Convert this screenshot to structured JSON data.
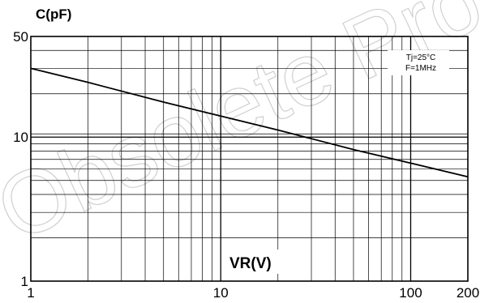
{
  "watermark": "Obsolete Pro",
  "chart_data": {
    "type": "line",
    "title": "",
    "xlabel": "VR(V)",
    "ylabel": "C(pF)",
    "x_scale": "log",
    "y_scale": "log",
    "xlim": [
      1,
      200
    ],
    "ylim": [
      1,
      50
    ],
    "x_ticks": [
      {
        "value": 1,
        "label": "1"
      },
      {
        "value": 10,
        "label": "10"
      },
      {
        "value": 100,
        "label": "100"
      },
      {
        "value": 200,
        "label": "200"
      }
    ],
    "y_ticks": [
      {
        "value": 1,
        "label": "1"
      },
      {
        "value": 10,
        "label": "10"
      },
      {
        "value": 50,
        "label": "50"
      }
    ],
    "grid": true,
    "annotations": [
      "Tj=25°C",
      "F=1MHz"
    ],
    "annotation_position": "top-right",
    "line_color": "#000000",
    "series": [
      {
        "x": [
          1,
          2,
          5,
          10,
          20,
          50,
          100,
          200
        ],
        "values": [
          30,
          24,
          17.5,
          14,
          11.2,
          8.2,
          6.6,
          5.3
        ]
      }
    ]
  }
}
